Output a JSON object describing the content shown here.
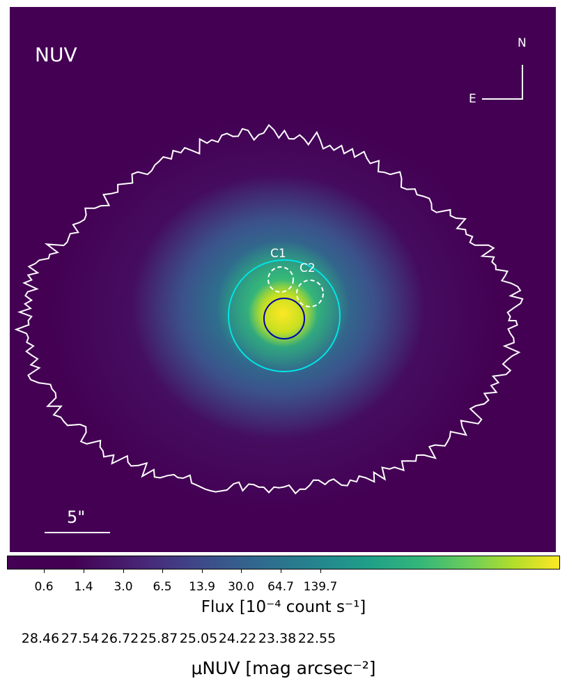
{
  "chart_data": {
    "type": "heatmap",
    "panel_label": "NUV",
    "compass": {
      "north": "N",
      "east": "E"
    },
    "scale_bar": "5\"",
    "apertures": [
      {
        "label": "C1",
        "style": "dashed",
        "color": "#ffffff"
      },
      {
        "label": "C2",
        "style": "dashed",
        "color": "#ffffff"
      },
      {
        "label": "",
        "style": "solid",
        "color": "#0000aa"
      },
      {
        "label": "",
        "style": "solid",
        "color": "#00e5e5"
      }
    ],
    "contour_color": "#ffffff",
    "colormap": "viridis",
    "colorbar": {
      "ticks": [
        "0.6",
        "1.4",
        "3.0",
        "6.5",
        "13.9",
        "30.0",
        "64.7",
        "139.7"
      ],
      "label": "Flux [10⁻⁴ count s⁻¹]",
      "secondary_ticks": [
        "28.46",
        "27.54",
        "26.72",
        "25.87",
        "25.05",
        "24.22",
        "23.38",
        "22.55"
      ],
      "secondary_label": "μNUV [mag arcsec⁻²]"
    }
  }
}
